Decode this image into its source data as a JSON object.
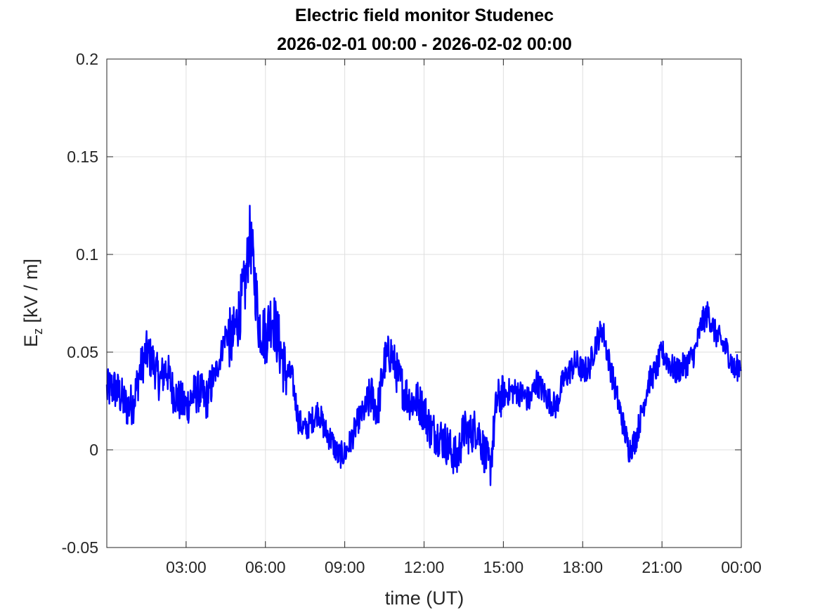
{
  "chart_data": {
    "type": "line",
    "title_lines": [
      "Electric field monitor Studenec",
      "2026-02-01 00:00 - 2026-02-02 00:00"
    ],
    "xlabel": "time (UT)",
    "ylabel": {
      "main": "E",
      "subscript": "z",
      "rest": " [kV / m]"
    },
    "x_unit": "hours UT",
    "xlim": [
      0,
      24
    ],
    "ylim": [
      -0.05,
      0.2
    ],
    "x_ticks": [
      3,
      6,
      9,
      12,
      15,
      18,
      21,
      24
    ],
    "x_tick_labels": [
      "03:00",
      "06:00",
      "09:00",
      "12:00",
      "15:00",
      "18:00",
      "21:00",
      "00:00"
    ],
    "y_ticks": [
      -0.05,
      0,
      0.05,
      0.1,
      0.15,
      0.2
    ],
    "y_tick_labels": [
      "-0.05",
      "0",
      "0.05",
      "0.1",
      "0.15",
      "0.2"
    ],
    "grid": true,
    "series": [
      {
        "color": "#0000ff",
        "x": [
          0.0,
          0.25,
          0.5,
          0.75,
          1.0,
          1.25,
          1.5,
          1.75,
          2.0,
          2.25,
          2.5,
          2.75,
          3.0,
          3.25,
          3.5,
          3.75,
          4.0,
          4.25,
          4.5,
          4.75,
          5.0,
          5.25,
          5.4,
          5.5,
          5.75,
          6.0,
          6.25,
          6.5,
          6.75,
          7.0,
          7.25,
          7.5,
          7.75,
          8.0,
          8.25,
          8.5,
          8.75,
          9.0,
          9.25,
          9.5,
          9.75,
          10.0,
          10.25,
          10.5,
          10.75,
          11.0,
          11.25,
          11.5,
          11.75,
          12.0,
          12.25,
          12.5,
          12.75,
          13.0,
          13.25,
          13.5,
          13.75,
          14.0,
          14.25,
          14.5,
          14.75,
          15.0,
          15.25,
          15.5,
          15.75,
          16.0,
          16.25,
          16.5,
          16.75,
          17.0,
          17.25,
          17.5,
          17.75,
          18.0,
          18.25,
          18.5,
          18.75,
          19.0,
          19.25,
          19.5,
          19.75,
          20.0,
          20.25,
          20.5,
          20.75,
          21.0,
          21.25,
          21.5,
          21.75,
          22.0,
          22.25,
          22.5,
          22.75,
          23.0,
          23.25,
          23.5,
          23.75,
          24.0
        ],
        "y": [
          0.03,
          0.032,
          0.028,
          0.022,
          0.024,
          0.04,
          0.05,
          0.045,
          0.035,
          0.042,
          0.03,
          0.025,
          0.022,
          0.028,
          0.03,
          0.025,
          0.035,
          0.045,
          0.06,
          0.055,
          0.07,
          0.085,
          0.11,
          0.1,
          0.065,
          0.058,
          0.07,
          0.055,
          0.04,
          0.038,
          0.015,
          0.01,
          0.015,
          0.02,
          0.01,
          0.005,
          -0.003,
          -0.002,
          0.005,
          0.015,
          0.02,
          0.028,
          0.02,
          0.045,
          0.05,
          0.038,
          0.03,
          0.025,
          0.025,
          0.02,
          0.01,
          0.008,
          0.005,
          0.0,
          -0.005,
          0.01,
          0.008,
          0.012,
          0.0,
          -0.01,
          0.025,
          0.028,
          0.03,
          0.03,
          0.028,
          0.025,
          0.035,
          0.03,
          0.025,
          0.022,
          0.035,
          0.04,
          0.045,
          0.04,
          0.042,
          0.055,
          0.062,
          0.045,
          0.03,
          0.015,
          0.0,
          0.005,
          0.02,
          0.035,
          0.04,
          0.05,
          0.045,
          0.04,
          0.042,
          0.045,
          0.05,
          0.065,
          0.07,
          0.06,
          0.055,
          0.05,
          0.04,
          0.045
        ]
      }
    ]
  }
}
